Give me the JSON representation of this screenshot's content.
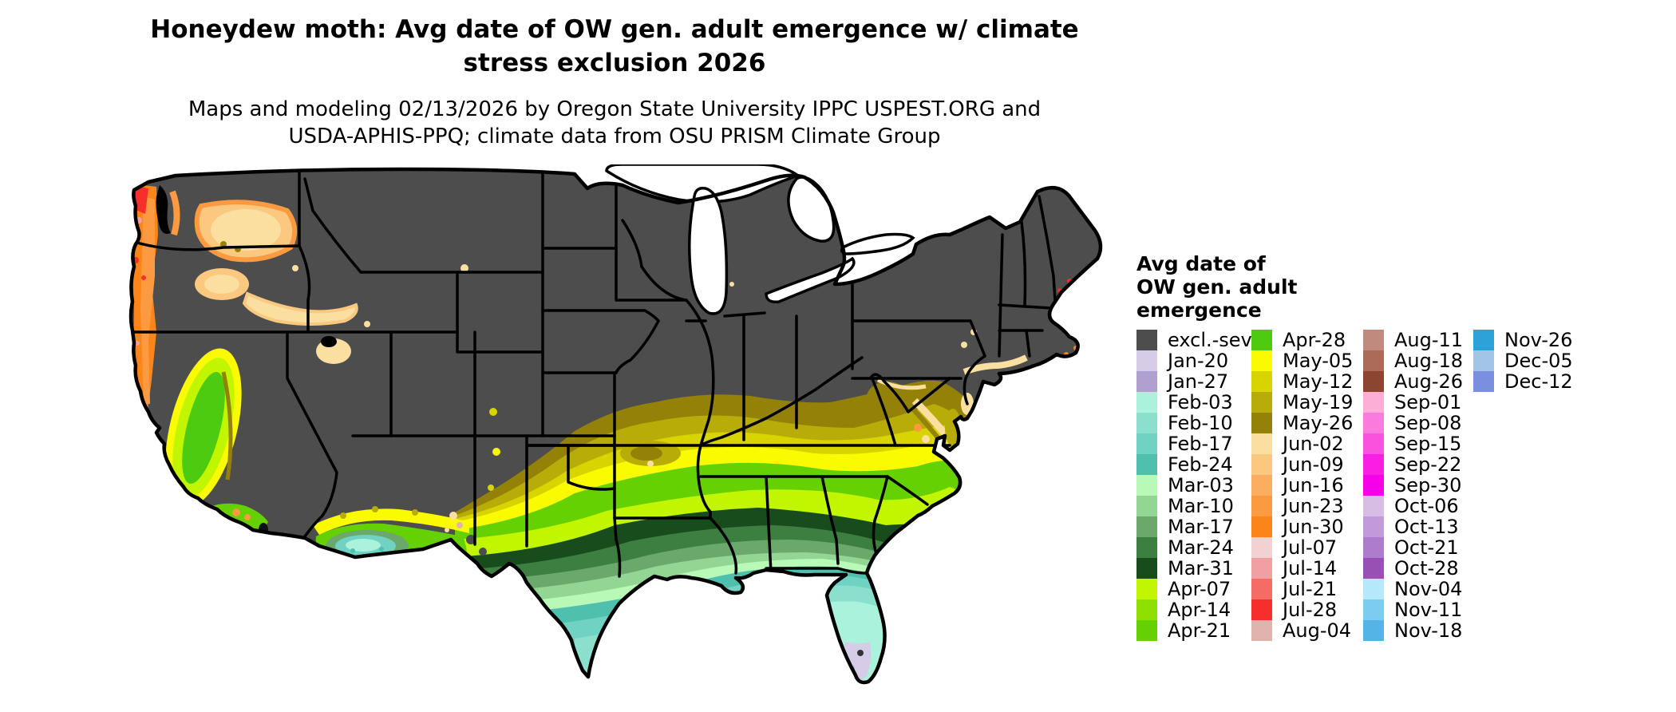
{
  "title": {
    "line1": "Honeydew moth: Avg date of OW gen. adult emergence w/ climate",
    "line2": "stress exclusion 2026"
  },
  "subtitle": {
    "line1": "Maps and modeling 02/13/2026 by Oregon State University IPPC USPEST.ORG and",
    "line2": "USDA-APHIS-PPQ; climate data from OSU PRISM Climate Group"
  },
  "map": {
    "region": "contiguous United States choropleth raster",
    "background_color": "#FFFFFF",
    "excluded_color": "#4D4D4D",
    "border_color": "#000000",
    "water_color": "#FFFFFF"
  },
  "legend": {
    "title_lines": [
      "Avg date of",
      "OW gen. adult",
      "emergence"
    ],
    "columns": [
      15,
      15,
      15,
      3
    ],
    "items": [
      {
        "label": "excl.-sev.",
        "color": "#4D4D4D"
      },
      {
        "label": "Jan-20",
        "color": "#D6CCE8"
      },
      {
        "label": "Jan-27",
        "color": "#AFA0D0"
      },
      {
        "label": "Feb-03",
        "color": "#ABF2DC"
      },
      {
        "label": "Feb-10",
        "color": "#8AE0CC"
      },
      {
        "label": "Feb-17",
        "color": "#6FD2C2"
      },
      {
        "label": "Feb-24",
        "color": "#4FC0AE"
      },
      {
        "label": "Mar-03",
        "color": "#B8F9B8"
      },
      {
        "label": "Mar-10",
        "color": "#93D693"
      },
      {
        "label": "Mar-17",
        "color": "#6AA86C"
      },
      {
        "label": "Mar-24",
        "color": "#3D7E41"
      },
      {
        "label": "Mar-31",
        "color": "#184C1C"
      },
      {
        "label": "Apr-07",
        "color": "#C2F500"
      },
      {
        "label": "Apr-14",
        "color": "#8EE000"
      },
      {
        "label": "Apr-21",
        "color": "#66D100"
      },
      {
        "label": "Apr-28",
        "color": "#4CCB10"
      },
      {
        "label": "May-05",
        "color": "#FAFA00"
      },
      {
        "label": "May-12",
        "color": "#D8D400"
      },
      {
        "label": "May-19",
        "color": "#B8AC08"
      },
      {
        "label": "May-26",
        "color": "#948208"
      },
      {
        "label": "Jun-02",
        "color": "#FADFA0"
      },
      {
        "label": "Jun-09",
        "color": "#FBC880"
      },
      {
        "label": "Jun-16",
        "color": "#FBAE60"
      },
      {
        "label": "Jun-23",
        "color": "#FB9A40"
      },
      {
        "label": "Jun-30",
        "color": "#FB8518"
      },
      {
        "label": "Jul-07",
        "color": "#F2D2D0"
      },
      {
        "label": "Jul-14",
        "color": "#F0A0A0"
      },
      {
        "label": "Jul-21",
        "color": "#F56C66"
      },
      {
        "label": "Jul-28",
        "color": "#F62F2C"
      },
      {
        "label": "Aug-04",
        "color": "#E0B4AC"
      },
      {
        "label": "Aug-11",
        "color": "#C08A7E"
      },
      {
        "label": "Aug-18",
        "color": "#AC6A58"
      },
      {
        "label": "Aug-26",
        "color": "#8C4630"
      },
      {
        "label": "Sep-01",
        "color": "#FCAED6"
      },
      {
        "label": "Sep-08",
        "color": "#FA7ADE"
      },
      {
        "label": "Sep-15",
        "color": "#FB52DC"
      },
      {
        "label": "Sep-22",
        "color": "#FA1EE4"
      },
      {
        "label": "Sep-30",
        "color": "#F500E8"
      },
      {
        "label": "Oct-06",
        "color": "#D7BCE4"
      },
      {
        "label": "Oct-13",
        "color": "#C09ADA"
      },
      {
        "label": "Oct-21",
        "color": "#AE7CCC"
      },
      {
        "label": "Oct-28",
        "color": "#9850B4"
      },
      {
        "label": "Nov-04",
        "color": "#B4E8FA"
      },
      {
        "label": "Nov-11",
        "color": "#7CCCF0"
      },
      {
        "label": "Nov-18",
        "color": "#54B4E4"
      },
      {
        "label": "Nov-26",
        "color": "#2CA2D8"
      },
      {
        "label": "Dec-05",
        "color": "#A2C4E6"
      },
      {
        "label": "Dec-12",
        "color": "#7A8FE0"
      }
    ]
  }
}
